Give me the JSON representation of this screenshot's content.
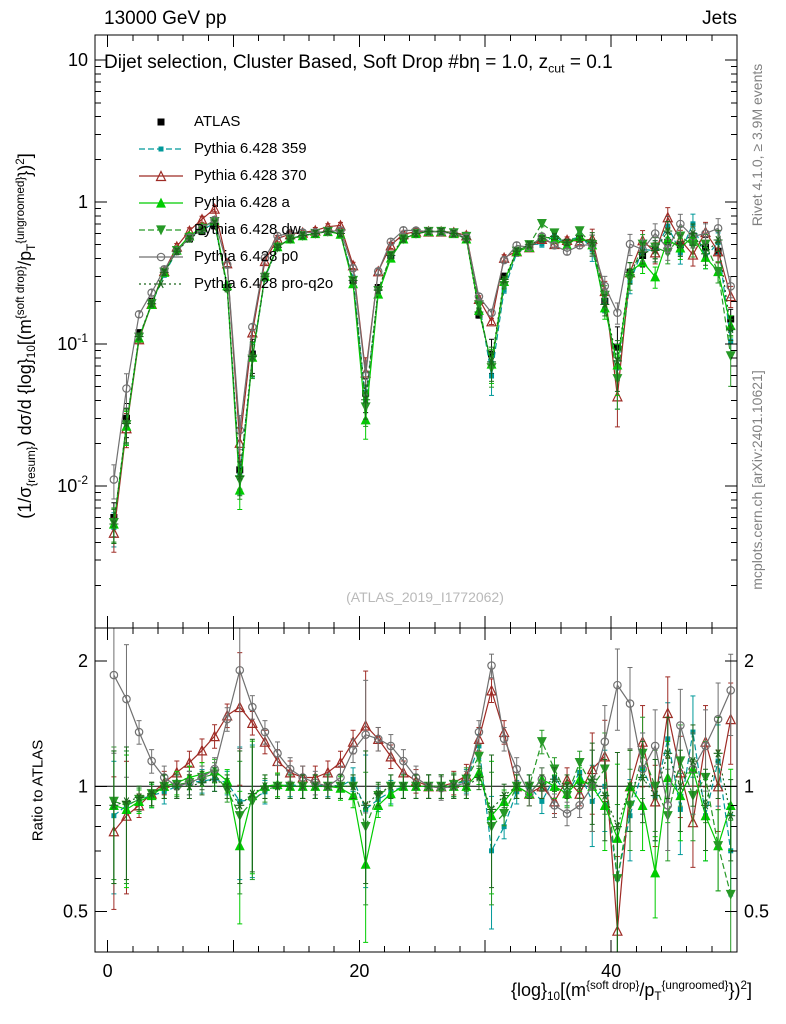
{
  "header": {
    "left_label": "13000 GeV pp",
    "right_label": "Jets"
  },
  "title": {
    "part1": "Dijet selection, Cluster Based, Soft Drop #b",
    "part2": "η = 1.0, z",
    "sub": "cut",
    "part3": " = 0.1"
  },
  "side_notes": {
    "top": "Rivet 4.1.0, ≥ 3.9M events",
    "bottom": "mcplots.cern.ch [arXiv:2401.10621]"
  },
  "watermark": "(ATLAS_2019_I1772062)",
  "axes": {
    "ylabel_main": {
      "p1": "(1/σ",
      "s1": "{resum}",
      "p2": ") dσ/d {log}",
      "s2": "10",
      "p3": "[(m",
      "sup1": "{soft drop}",
      "p4": "/p",
      "s3": "T",
      "sup2": "{ungroomed}",
      "p5": "})",
      "sup3": "2",
      "p6": "]"
    },
    "xlabel": {
      "p1": "{log}",
      "s1": "10",
      "p2": "[(m",
      "sup1": "{soft drop}",
      "p3": "/p",
      "s2": "T",
      "sup2": "{ungroomed}",
      "p4": "})",
      "sup3": "2",
      "p5": "]"
    },
    "ylabel_ratio": "Ratio to ATLAS"
  },
  "chart_data": {
    "type": "line",
    "title": "Dijet selection, Cluster Based, Soft Drop #bη = 1.0, z_cut = 0.1",
    "xlabel": "{log}_10[(m^{soft drop}/p_T^{ungroomed})^2]",
    "ylabel": "(1/σ_{resum}) dσ/d {log}_10[(m^{soft drop}/p_T^{ungroomed})^2]",
    "ratio_label": "Ratio to ATLAS",
    "yscale": "log",
    "xlim": [
      -1,
      50
    ],
    "ylim": [
      0.001,
      15
    ],
    "ratio_ylim": [
      0.4,
      2.4
    ],
    "xticks": [
      {
        "v": 0,
        "label": "0"
      },
      {
        "v": 20,
        "label": "20"
      },
      {
        "v": 40,
        "label": "40"
      }
    ],
    "yticks_main": [
      {
        "v": 10,
        "base": "10",
        "exp": ""
      },
      {
        "v": 1,
        "base": "1",
        "exp": ""
      },
      {
        "v": 0.1,
        "base": "10",
        "exp": "-1"
      },
      {
        "v": 0.01,
        "base": "10",
        "exp": "-2"
      }
    ],
    "yticks_ratio": [
      {
        "v": 2,
        "label": "2"
      },
      {
        "v": 1,
        "label": "1"
      },
      {
        "v": 0.5,
        "label": "0.5"
      }
    ],
    "error_model": {
      "base": 0.05,
      "low_value_threshold": 0.1,
      "low_value_extra": 0.22,
      "high_x_threshold": 38,
      "high_x_extra": 0.12
    },
    "x": [
      0.5,
      1.5,
      2.5,
      3.5,
      4.5,
      5.5,
      6.5,
      7.5,
      8.5,
      9.5,
      10.5,
      11.5,
      12.5,
      13.5,
      14.5,
      15.5,
      16.5,
      17.5,
      18.5,
      19.5,
      20.5,
      21.5,
      22.5,
      23.5,
      24.5,
      25.5,
      26.5,
      27.5,
      28.5,
      29.5,
      30.5,
      31.5,
      32.5,
      33.5,
      34.5,
      35.5,
      36.5,
      37.5,
      38.5,
      39.5,
      40.5,
      41.5,
      42.5,
      43.5,
      44.5,
      45.5,
      46.5,
      47.5,
      48.5,
      49.5
    ],
    "series": [
      {
        "name": "ATLAS",
        "color": "#000000",
        "marker": "square",
        "fill": "filled",
        "line": "none",
        "marker_size": 7,
        "values": [
          0.006,
          0.03,
          0.12,
          0.2,
          0.32,
          0.45,
          0.55,
          0.62,
          0.68,
          0.25,
          0.013,
          0.085,
          0.3,
          0.48,
          0.55,
          0.58,
          0.6,
          0.62,
          0.6,
          0.28,
          0.045,
          0.25,
          0.42,
          0.55,
          0.6,
          0.62,
          0.62,
          0.6,
          0.55,
          0.16,
          0.085,
          0.3,
          0.45,
          0.5,
          0.55,
          0.55,
          0.52,
          0.55,
          0.5,
          0.2,
          0.095,
          0.32,
          0.42,
          0.48,
          0.52,
          0.5,
          0.52,
          0.48,
          0.45,
          0.15
        ]
      },
      {
        "name": "Pythia 6.428 359",
        "color": "#00999a",
        "marker": "square",
        "fill": "filled",
        "line": "dash",
        "marker_size": 5,
        "ratio_to_atlas": [
          0.85,
          0.9,
          0.93,
          0.95,
          0.97,
          1.0,
          1.02,
          1.03,
          1.04,
          1.02,
          0.92,
          0.93,
          0.97,
          1.0,
          1.01,
          1.0,
          1.0,
          1.01,
          1.0,
          1.04,
          0.88,
          0.93,
          0.97,
          1.0,
          1.0,
          1.0,
          1.0,
          1.01,
          1.03,
          1.25,
          0.7,
          0.8,
          0.97,
          1.0,
          0.92,
          1.05,
          0.96,
          1.08,
          0.92,
          1.0,
          0.6,
          0.85,
          1.1,
          0.95,
          1.3,
          0.88,
          1.35,
          0.85,
          1.15,
          0.7
        ]
      },
      {
        "name": "Pythia 6.428 370",
        "color": "#9e2b25",
        "marker": "triangle-up",
        "fill": "open",
        "line": "solid",
        "marker_size": 9,
        "ratio_to_atlas": [
          0.78,
          0.85,
          0.9,
          0.96,
          1.02,
          1.08,
          1.14,
          1.22,
          1.32,
          1.48,
          1.55,
          1.42,
          1.28,
          1.15,
          1.08,
          1.05,
          1.05,
          1.08,
          1.14,
          1.28,
          1.4,
          1.3,
          1.18,
          1.08,
          1.03,
          1.0,
          1.0,
          1.02,
          1.06,
          1.3,
          1.7,
          1.35,
          1.0,
          0.96,
          1.0,
          0.92,
          1.04,
          0.96,
          1.1,
          1.18,
          0.45,
          1.0,
          1.28,
          0.92,
          1.5,
          1.08,
          0.82,
          1.28,
          1.0,
          1.45
        ]
      },
      {
        "name": "Pythia 6.428 a",
        "color": "#00cc00",
        "marker": "triangle-up",
        "fill": "filled",
        "line": "solid",
        "marker_size": 8,
        "ratio_to_atlas": [
          0.9,
          0.88,
          0.92,
          0.95,
          1.0,
          1.02,
          1.05,
          1.07,
          1.09,
          1.03,
          0.72,
          0.95,
          1.0,
          1.01,
          1.0,
          1.0,
          1.0,
          1.0,
          0.99,
          0.95,
          0.65,
          0.9,
          0.96,
          1.0,
          1.0,
          1.0,
          1.0,
          1.0,
          1.0,
          1.08,
          0.85,
          0.92,
          1.0,
          0.96,
          1.04,
          1.0,
          0.96,
          1.04,
          1.0,
          0.9,
          0.75,
          1.0,
          0.9,
          0.62,
          1.05,
          0.95,
          1.1,
          0.85,
          0.72,
          0.9
        ]
      },
      {
        "name": "Pythia 6.428 dw",
        "color": "#269926",
        "marker": "triangle-down",
        "fill": "filled",
        "line": "dash",
        "marker_size": 8,
        "ratio_to_atlas": [
          0.92,
          0.9,
          0.93,
          0.96,
          1.0,
          1.01,
          1.02,
          1.05,
          1.07,
          0.98,
          0.85,
          0.92,
          0.98,
          1.0,
          1.0,
          1.0,
          1.0,
          1.0,
          1.0,
          1.0,
          0.8,
          0.95,
          1.0,
          1.0,
          1.0,
          1.0,
          1.0,
          1.01,
          1.04,
          1.18,
          0.8,
          0.86,
          1.0,
          1.0,
          1.28,
          1.1,
          0.95,
          1.14,
          1.0,
          1.1,
          0.6,
          0.9,
          1.2,
          1.0,
          0.85,
          1.15,
          0.95,
          1.05,
          0.72,
          0.55
        ]
      },
      {
        "name": "Pythia 6.428 p0",
        "color": "#707070",
        "marker": "circle",
        "fill": "open",
        "line": "solid",
        "marker_size": 8,
        "ratio_to_atlas": [
          1.85,
          1.62,
          1.35,
          1.15,
          1.05,
          1.0,
          1.02,
          1.05,
          1.1,
          1.45,
          1.9,
          1.55,
          1.35,
          1.2,
          1.1,
          1.05,
          1.02,
          1.0,
          1.05,
          1.22,
          1.33,
          1.3,
          1.25,
          1.15,
          1.05,
          1.0,
          0.99,
          1.0,
          1.02,
          1.35,
          1.95,
          1.3,
          1.1,
          0.96,
          1.04,
          0.9,
          0.86,
          0.9,
          1.0,
          1.28,
          1.75,
          1.58,
          1.1,
          1.25,
          0.9,
          1.4,
          1.1,
          1.25,
          1.45,
          1.7
        ]
      },
      {
        "name": "Pythia 6.428 pro-q2o",
        "color": "#1b661b",
        "marker": "asterisk",
        "fill": "open",
        "line": "dot",
        "marker_size": 9,
        "ratio_to_atlas": [
          0.9,
          0.92,
          0.94,
          0.96,
          1.0,
          1.0,
          1.0,
          1.02,
          1.04,
          1.0,
          0.9,
          0.96,
          1.0,
          1.0,
          1.0,
          1.0,
          1.0,
          1.0,
          1.0,
          1.0,
          0.9,
          0.96,
          1.0,
          1.0,
          1.0,
          1.0,
          1.0,
          1.0,
          1.0,
          1.05,
          0.88,
          0.95,
          1.0,
          1.0,
          1.0,
          1.04,
          1.0,
          1.0,
          1.04,
          0.95,
          0.8,
          1.0,
          1.05,
          0.95,
          1.2,
          1.0,
          1.15,
          0.9,
          1.2,
          0.85
        ]
      }
    ]
  }
}
